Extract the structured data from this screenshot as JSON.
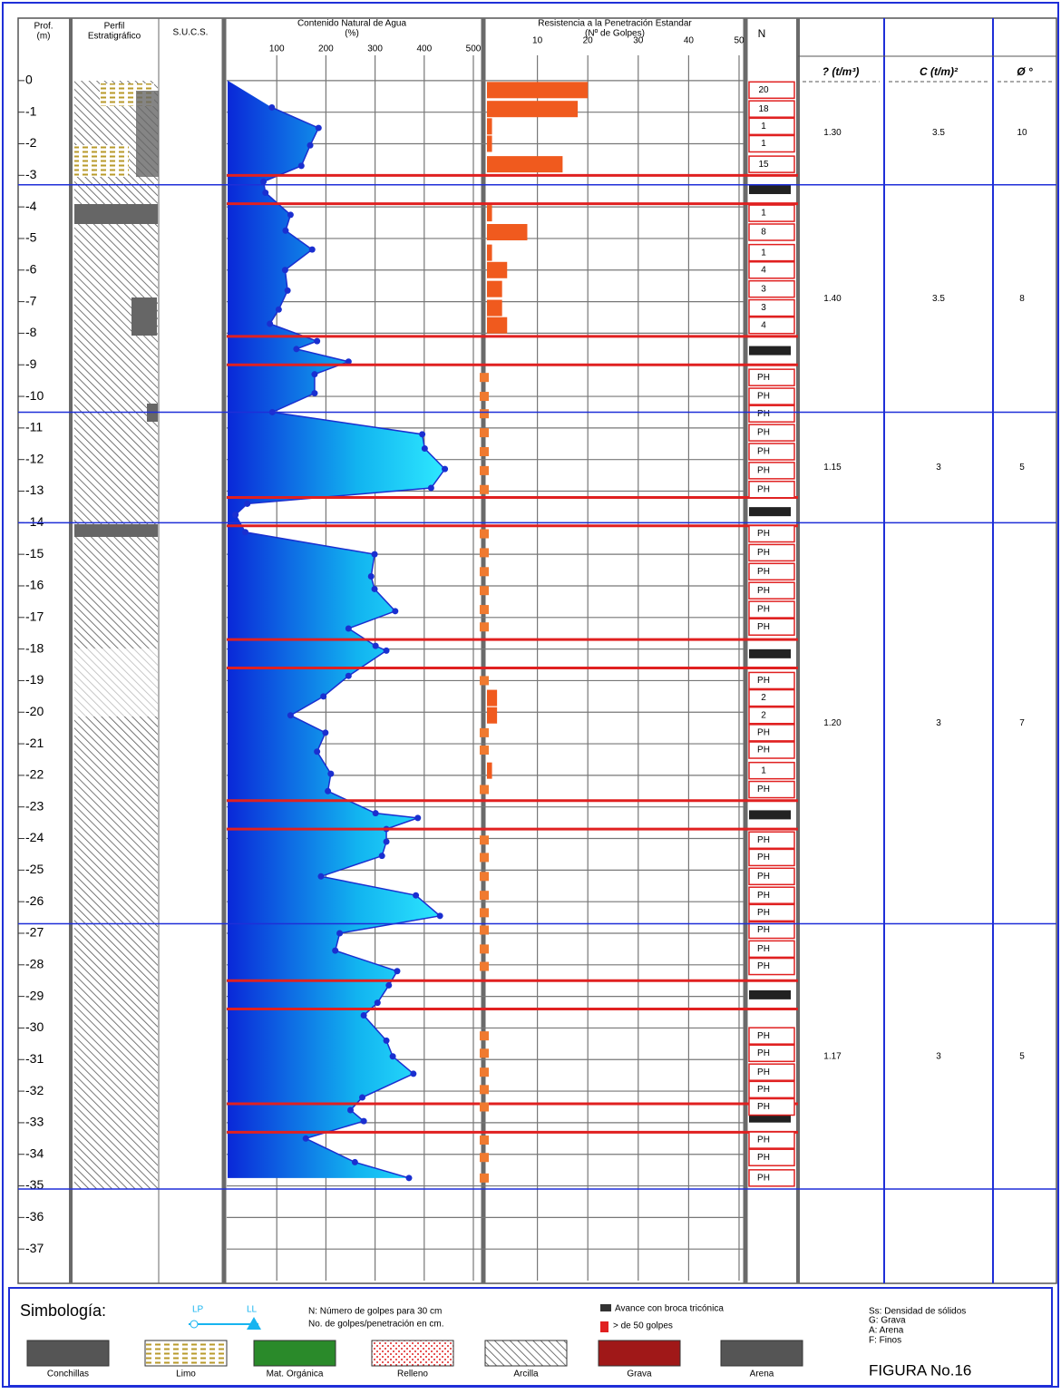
{
  "chart_data": {
    "type": "log",
    "headers": {
      "depth": [
        "Prof.",
        "(m)"
      ],
      "profile": [
        "Perfil",
        "Estratigráfico"
      ],
      "sucs": "S.U.C.S.",
      "water": [
        "Contenido Natural de Agua",
        "(%)"
      ],
      "spt": [
        "Resistencia a la Penetración Estandar",
        "(Nº de Golpes)"
      ],
      "n": "N",
      "gamma": "? (t/m³)",
      "c": "C (t/m)²",
      "phi": "Ø °"
    },
    "ylim": [
      0.8,
      -38
    ],
    "yticks": [
      0,
      -1,
      -2,
      -3,
      -4,
      -5,
      -6,
      -7,
      -8,
      -9,
      -10,
      -11,
      -12,
      -13,
      -14,
      -15,
      -16,
      -17,
      -18,
      -19,
      -20,
      -21,
      -22,
      -23,
      -24,
      -25,
      -26,
      -27,
      -28,
      -29,
      -30,
      -31,
      -32,
      -33,
      -34,
      -35,
      -36,
      -37
    ],
    "grid": true,
    "water": {
      "color": "#1a2fd0",
      "xlim": [
        0,
        500
      ],
      "xticks": [
        100,
        200,
        300,
        400,
        500
      ],
      "depth": [
        -0.85,
        -1.5,
        -2.05,
        -2.7,
        -3.2,
        -3.55,
        -4.25,
        -4.75,
        -5.35,
        -6.0,
        -6.65,
        -7.25,
        -7.7,
        -8.25,
        -8.5,
        -8.9,
        -9.3,
        -9.9,
        -10.5,
        -11.2,
        -11.65,
        -12.3,
        -12.9,
        -13.4,
        -13.75,
        -14.3,
        -15.0,
        -15.7,
        -16.1,
        -16.8,
        -17.35,
        -17.9,
        -18.05,
        -18.85,
        -19.5,
        -20.1,
        -20.65,
        -21.25,
        -21.95,
        -22.5,
        -23.2,
        -23.35,
        -23.7,
        -24.1,
        -24.55,
        -25.2,
        -25.8,
        -26.45,
        -27.0,
        -27.55,
        -28.2,
        -28.65,
        -29.2,
        -29.6,
        -30.4,
        -30.9,
        -31.45,
        -32.2,
        -32.6,
        -32.95,
        -33.5,
        -34.25,
        -34.75
      ],
      "values": [
        90,
        185,
        168,
        150,
        73,
        77,
        128,
        118,
        172,
        117,
        122,
        104,
        86,
        182,
        140,
        246,
        177,
        177,
        91,
        396,
        401,
        442,
        414,
        40,
        16,
        36,
        299,
        292,
        299,
        341,
        246,
        301,
        323,
        246,
        195,
        128,
        199,
        182,
        210,
        204,
        301,
        387,
        323,
        323,
        314,
        190,
        383,
        432,
        228,
        219,
        345,
        328,
        305,
        277,
        323,
        336,
        378,
        274,
        250,
        277,
        159,
        259,
        369
      ]
    },
    "spt": {
      "color": "#f05a1e",
      "xlim": [
        0,
        50
      ],
      "xticks": [
        10,
        20,
        30,
        40,
        50
      ]
    },
    "n_column": {
      "depth": [
        -0.3,
        -0.9,
        -1.45,
        -2.0,
        -2.65,
        -4.2,
        -4.8,
        -5.45,
        -6.0,
        -6.6,
        -7.2,
        -7.75,
        -9.4,
        -10.0,
        -10.55,
        -11.15,
        -11.75,
        -12.35,
        -12.95,
        -14.35,
        -14.95,
        -15.55,
        -16.15,
        -16.75,
        -17.3,
        -19.0,
        -19.55,
        -20.1,
        -20.65,
        -21.2,
        -21.85,
        -22.45,
        -24.05,
        -24.6,
        -25.2,
        -25.8,
        -26.35,
        -26.9,
        -27.5,
        -28.05,
        -30.25,
        -30.8,
        -31.4,
        -31.95,
        -32.5,
        -33.55,
        -34.1,
        -34.75
      ],
      "labels": [
        20,
        18,
        1,
        1,
        15,
        1,
        8,
        1,
        4,
        3,
        3,
        4,
        "PH",
        "PH",
        "PH",
        "PH",
        "PH",
        "PH",
        "PH",
        "PH",
        "PH",
        "PH",
        "PH",
        "PH",
        "PH",
        "PH",
        2,
        2,
        "PH",
        "PH",
        1,
        "PH",
        "PH",
        "PH",
        "PH",
        "PH",
        "PH",
        "PH",
        "PH",
        "PH",
        "PH",
        "PH",
        "PH",
        "PH",
        "PH",
        "PH",
        "PH",
        "PH"
      ]
    },
    "tricone": [
      [
        -3.0,
        -3.9
      ],
      [
        -8.1,
        -9.0
      ],
      [
        -13.2,
        -14.1
      ],
      [
        -17.7,
        -18.6
      ],
      [
        -22.8,
        -23.7
      ],
      [
        -28.5,
        -29.4
      ],
      [
        -32.4,
        -33.3
      ]
    ],
    "layers": [
      {
        "bottom": -3.3,
        "gamma": "1.30",
        "c": 3.5,
        "phi": 10
      },
      {
        "bottom": -10.5,
        "gamma": "1.40",
        "c": 3.5,
        "phi": 8
      },
      {
        "bottom": -14.0,
        "gamma": "1.15",
        "c": 3,
        "phi": 5
      },
      {
        "bottom": -26.7,
        "gamma": "1.20",
        "c": 3,
        "phi": 7
      },
      {
        "bottom": -35.1,
        "gamma": "1.17",
        "c": 3,
        "phi": 5
      }
    ],
    "legend": {
      "title": "Simbología:",
      "lp": "LP",
      "ll": "LL",
      "n_note": "N: Número de golpes para 30 cm",
      "pen_note": "No. de golpes/penetración en cm.",
      "tricone_note": "Avance con broca tricónica",
      "over50_note": "> de 50 golpes",
      "abbrev": [
        "Ss: Densidad de sólidos",
        "G: Grava",
        "A: Arena",
        "F: Finos"
      ],
      "swatches": [
        "Conchillas",
        "Limo",
        "Mat. Orgánica",
        "Relleno",
        "Arcilla",
        "Grava",
        "Arena"
      ],
      "figure": "FIGURA No.16"
    }
  }
}
